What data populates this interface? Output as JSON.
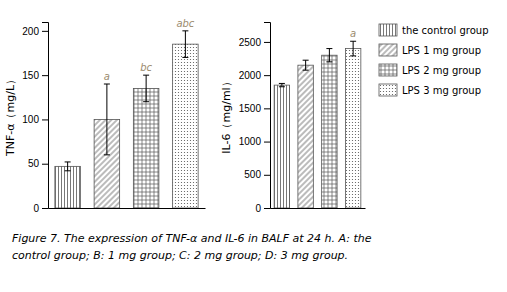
{
  "chart_data": [
    {
      "type": "bar",
      "y_label": "TNF-α（mg/L）",
      "categories": [
        "the control group",
        "LPS 1 mg group",
        "LPS 2 mg group",
        "LPS 3 mg group"
      ],
      "values": [
        47,
        100,
        135,
        185
      ],
      "errors": [
        5,
        40,
        15,
        15
      ],
      "ylim": [
        0,
        210
      ],
      "yticks": [
        0,
        50,
        100,
        150,
        200
      ],
      "color": "#555555",
      "tick_labels": "y",
      "annotations": [
        {
          "category": "LPS 1 mg group",
          "text": "a",
          "color": "#9B8B6E"
        },
        {
          "category": "LPS 2 mg group",
          "text": "bc",
          "color": "#9B8B6E"
        },
        {
          "category": "LPS 3 mg group",
          "text": "abc",
          "color": "#9B8B6E"
        }
      ],
      "caption": [
        "Figure 7. The expression of TNF-α and IL-6 in BALF at 24 h. A: the",
        "control group; B: 1 mg group; C: 2 mg group; D: 3 mg group."
      ]
    },
    {
      "type": "bar",
      "y_label": "IL-6（mg/ml）",
      "categories": [
        "the control group",
        "LPS 1 mg group",
        "LPS 2 mg group",
        "LPS 3 mg group"
      ],
      "values": [
        1850,
        2150,
        2300,
        2400
      ],
      "errors": [
        25,
        75,
        100,
        110
      ],
      "ylim": [
        0,
        2800
      ],
      "yticks": [
        0,
        500,
        1000,
        1500,
        2000,
        2500
      ],
      "color": "#555555",
      "tick_labels": "y",
      "legend": "right",
      "annotations": [
        {
          "category": "LPS 3 mg group",
          "text": "a",
          "color": "#9B8B6E"
        }
      ]
    }
  ]
}
